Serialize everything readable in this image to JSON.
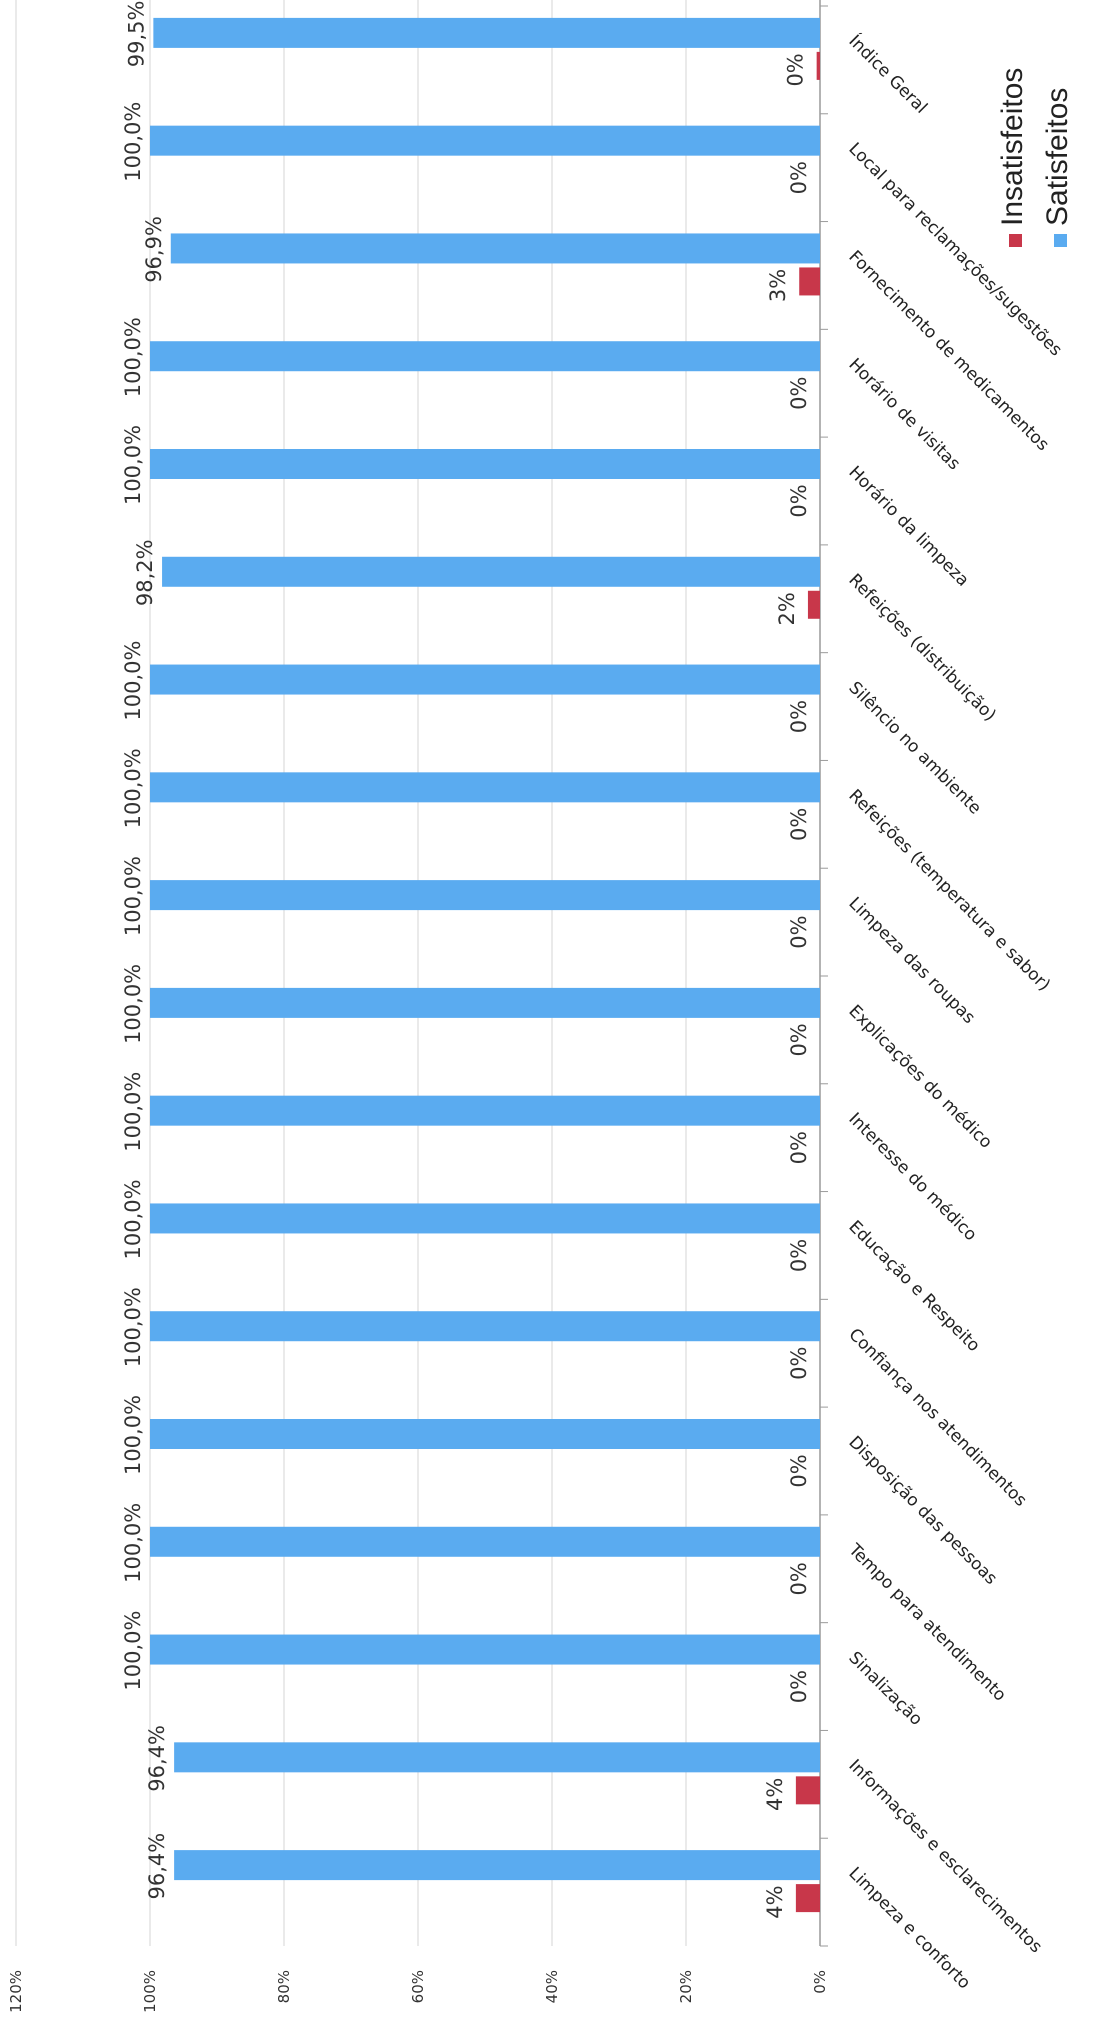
{
  "chart_data": {
    "type": "bar",
    "orientation": "horizontal-bars",
    "categories": [
      "Limpeza e conforto",
      "Informações e esclarecimentos",
      "Sinalização",
      "Tempo para atendimento",
      "Disposição das pessoas",
      "Confiança nos atendimentos",
      "Educação e Respeito",
      "Interesse do médico",
      "Explicações do médico",
      "Limpeza das roupas",
      "Refeições (temperatura e sabor)",
      "Silêncio no ambiente",
      "Refeições (distribuição)",
      "Horário da limpeza",
      "Horário de visitas",
      "Fornecimento de medicamentos",
      "Local para reclamações/sugestões",
      "Índice Geral"
    ],
    "series": [
      {
        "name": "Satisfeitos",
        "color": "#5aabf0",
        "values": [
          96.4,
          96.4,
          100.0,
          100.0,
          100.0,
          100.0,
          100.0,
          100.0,
          100.0,
          100.0,
          100.0,
          100.0,
          98.2,
          100.0,
          100.0,
          96.9,
          100.0,
          99.5
        ],
        "labels": [
          "96,4%",
          "96,4%",
          "100,0%",
          "100,0%",
          "100,0%",
          "100,0%",
          "100,0%",
          "100,0%",
          "100,0%",
          "100,0%",
          "100,0%",
          "100,0%",
          "98,2%",
          "100,0%",
          "100,0%",
          "96,9%",
          "100,0%",
          "99,5%"
        ]
      },
      {
        "name": "Insatisfeitos",
        "color": "#c8374a",
        "values": [
          3.6,
          3.6,
          0,
          0,
          0,
          0,
          0,
          0,
          0,
          0,
          0,
          0,
          1.8,
          0,
          0,
          3.1,
          0,
          0.5
        ],
        "labels": [
          "4%",
          "4%",
          "0%",
          "0%",
          "0%",
          "0%",
          "0%",
          "0%",
          "0%",
          "0%",
          "0%",
          "0%",
          "2%",
          "0%",
          "0%",
          "3%",
          "0%",
          "0%"
        ]
      }
    ],
    "axis_ticks": [
      "0%",
      "20%",
      "40%",
      "60%",
      "80%",
      "100%",
      "120%"
    ],
    "ylim": [
      0,
      120
    ],
    "grid": true,
    "legend": {
      "placement": "top-right",
      "entries": [
        "Insatisfeitos",
        "Satisfeitos"
      ]
    },
    "title": "",
    "xlabel": "",
    "ylabel": ""
  }
}
